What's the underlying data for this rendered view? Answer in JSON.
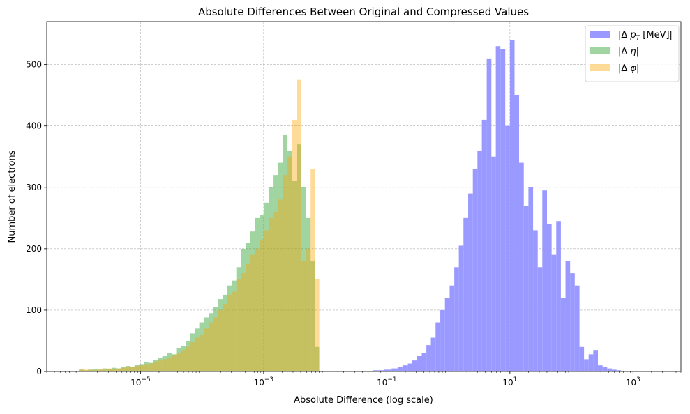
{
  "chart_data": {
    "type": "histogram",
    "title": "Absolute Differences Between Original and Compressed Values",
    "xlabel": "Absolute Difference (log scale)",
    "ylabel": "Number of electrons",
    "xscale": "log",
    "xlim": [
      3e-07,
      6000
    ],
    "ylim": [
      0,
      570
    ],
    "grid": true,
    "legend_position": "top-right",
    "x_ticks": [
      {
        "base": "10",
        "exp": "−5",
        "value": 1e-05
      },
      {
        "base": "10",
        "exp": "−3",
        "value": 0.001
      },
      {
        "base": "10",
        "exp": "−1",
        "value": 0.1
      },
      {
        "base": "10",
        "exp": "1",
        "value": 10
      },
      {
        "base": "10",
        "exp": "3",
        "value": 1000
      }
    ],
    "y_ticks": [
      0,
      100,
      200,
      300,
      400,
      500
    ],
    "series": [
      {
        "name": "|Δ p_T [MeV]|",
        "label_main": "|Δ ",
        "label_var": "p",
        "label_sub": "T",
        "label_tail": " [MeV]|",
        "color": "#9999ff",
        "opacity": 1.0,
        "bins": [
          [
            0.04,
            0.06,
            1
          ],
          [
            0.06,
            0.09,
            2
          ],
          [
            0.09,
            0.12,
            3
          ],
          [
            0.12,
            0.15,
            5
          ],
          [
            0.15,
            0.18,
            7
          ],
          [
            0.18,
            0.22,
            10
          ],
          [
            0.22,
            0.26,
            13
          ],
          [
            0.26,
            0.31,
            18
          ],
          [
            0.31,
            0.37,
            25
          ],
          [
            0.37,
            0.44,
            30
          ],
          [
            0.44,
            0.52,
            43
          ],
          [
            0.52,
            0.62,
            55
          ],
          [
            0.62,
            0.74,
            80
          ],
          [
            0.74,
            0.88,
            100
          ],
          [
            0.88,
            1.05,
            120
          ],
          [
            1.05,
            1.25,
            140
          ],
          [
            1.25,
            1.48,
            170
          ],
          [
            1.48,
            1.76,
            205
          ],
          [
            1.76,
            2.1,
            250
          ],
          [
            2.1,
            2.5,
            290
          ],
          [
            2.5,
            2.97,
            330
          ],
          [
            2.97,
            3.5,
            360
          ],
          [
            3.5,
            4.2,
            410
          ],
          [
            4.2,
            5.0,
            510
          ],
          [
            5.0,
            5.9,
            350
          ],
          [
            5.9,
            7.0,
            530
          ],
          [
            7.0,
            8.4,
            525
          ],
          [
            8.4,
            10.0,
            400
          ],
          [
            10.0,
            11.9,
            540
          ],
          [
            11.9,
            14.1,
            450
          ],
          [
            14.1,
            16.8,
            340
          ],
          [
            16.8,
            20.0,
            270
          ],
          [
            20.0,
            23.8,
            300
          ],
          [
            23.8,
            28.3,
            230
          ],
          [
            28.3,
            33.6,
            170
          ],
          [
            33.6,
            40.0,
            295
          ],
          [
            40.0,
            47.6,
            240
          ],
          [
            47.6,
            56.6,
            190
          ],
          [
            56.6,
            67.3,
            245
          ],
          [
            67.3,
            80.0,
            120
          ],
          [
            80.0,
            95.1,
            180
          ],
          [
            95.1,
            113,
            160
          ],
          [
            113,
            135,
            140
          ],
          [
            135,
            160,
            40
          ],
          [
            160,
            190,
            20
          ],
          [
            190,
            226,
            28
          ],
          [
            226,
            269,
            35
          ],
          [
            269,
            320,
            10
          ],
          [
            320,
            380,
            7
          ],
          [
            380,
            452,
            5
          ],
          [
            452,
            538,
            3
          ],
          [
            538,
            640,
            2
          ],
          [
            640,
            760,
            1
          ]
        ]
      },
      {
        "name": "|Δ η|",
        "label_main": "|Δ ",
        "label_var": "η",
        "label_sub": "",
        "label_tail": "|",
        "color": "#2ca02c",
        "opacity": 0.45,
        "bins": [
          [
            1e-06,
            1.2e-06,
            3
          ],
          [
            1.2e-06,
            1.4e-06,
            2
          ],
          [
            1.4e-06,
            1.7e-06,
            3
          ],
          [
            1.7e-06,
            2e-06,
            4
          ],
          [
            2e-06,
            2.4e-06,
            3
          ],
          [
            2.4e-06,
            2.8e-06,
            5
          ],
          [
            2.8e-06,
            3.4e-06,
            4
          ],
          [
            3.4e-06,
            4e-06,
            6
          ],
          [
            4e-06,
            4.8e-06,
            5
          ],
          [
            4.8e-06,
            5.7e-06,
            7
          ],
          [
            5.7e-06,
            6.8e-06,
            9
          ],
          [
            6.8e-06,
            8e-06,
            8
          ],
          [
            8e-06,
            9.5e-06,
            11
          ],
          [
            9.5e-06,
            1.13e-05,
            12
          ],
          [
            1.13e-05,
            1.35e-05,
            15
          ],
          [
            1.35e-05,
            1.6e-05,
            14
          ],
          [
            1.6e-05,
            1.9e-05,
            19
          ],
          [
            1.9e-05,
            2.26e-05,
            22
          ],
          [
            2.26e-05,
            2.69e-05,
            25
          ],
          [
            2.69e-05,
            3.2e-05,
            30
          ],
          [
            3.2e-05,
            3.8e-05,
            28
          ],
          [
            3.8e-05,
            4.5e-05,
            38
          ],
          [
            4.5e-05,
            5.4e-05,
            42
          ],
          [
            5.4e-05,
            6.4e-05,
            50
          ],
          [
            6.4e-05,
            7.6e-05,
            62
          ],
          [
            7.6e-05,
            9e-05,
            70
          ],
          [
            9e-05,
            0.000107,
            80
          ],
          [
            0.000107,
            0.000128,
            88
          ],
          [
            0.000128,
            0.000152,
            95
          ],
          [
            0.000152,
            0.00018,
            105
          ],
          [
            0.00018,
            0.000215,
            118
          ],
          [
            0.000215,
            0.000256,
            125
          ],
          [
            0.000256,
            0.000304,
            140
          ],
          [
            0.000304,
            0.00036,
            148
          ],
          [
            0.00036,
            0.00043,
            170
          ],
          [
            0.00043,
            0.00051,
            200
          ],
          [
            0.00051,
            0.00061,
            210
          ],
          [
            0.00061,
            0.00072,
            228
          ],
          [
            0.00072,
            0.00086,
            250
          ],
          [
            0.00086,
            0.00102,
            255
          ],
          [
            0.00102,
            0.00122,
            275
          ],
          [
            0.00122,
            0.00145,
            300
          ],
          [
            0.00145,
            0.00172,
            320
          ],
          [
            0.00172,
            0.00205,
            340
          ],
          [
            0.00205,
            0.00244,
            385
          ],
          [
            0.00244,
            0.0029,
            360
          ],
          [
            0.0029,
            0.00345,
            310
          ],
          [
            0.00345,
            0.0041,
            370
          ],
          [
            0.0041,
            0.0049,
            300
          ],
          [
            0.0049,
            0.0058,
            250
          ],
          [
            0.0058,
            0.0069,
            180
          ],
          [
            0.0069,
            0.008,
            40
          ]
        ]
      },
      {
        "name": "|Δ φ|",
        "label_main": "|Δ ",
        "label_var": "φ",
        "label_sub": "",
        "label_tail": "|",
        "color": "#ffa500",
        "opacity": 0.4,
        "bins": [
          [
            1e-06,
            1.2e-06,
            4
          ],
          [
            1.2e-06,
            1.4e-06,
            3
          ],
          [
            1.4e-06,
            1.7e-06,
            3
          ],
          [
            1.7e-06,
            2e-06,
            2
          ],
          [
            2e-06,
            2.4e-06,
            4
          ],
          [
            2.4e-06,
            2.8e-06,
            3
          ],
          [
            2.8e-06,
            3.4e-06,
            5
          ],
          [
            3.4e-06,
            4e-06,
            4
          ],
          [
            4e-06,
            4.8e-06,
            5
          ],
          [
            4.8e-06,
            5.7e-06,
            6
          ],
          [
            5.7e-06,
            6.8e-06,
            7
          ],
          [
            6.8e-06,
            8e-06,
            8
          ],
          [
            8e-06,
            9.5e-06,
            9
          ],
          [
            9.5e-06,
            1.13e-05,
            10
          ],
          [
            1.13e-05,
            1.35e-05,
            12
          ],
          [
            1.35e-05,
            1.6e-05,
            13
          ],
          [
            1.6e-05,
            1.9e-05,
            15
          ],
          [
            1.9e-05,
            2.26e-05,
            18
          ],
          [
            2.26e-05,
            2.69e-05,
            20
          ],
          [
            2.69e-05,
            3.2e-05,
            23
          ],
          [
            3.2e-05,
            3.8e-05,
            26
          ],
          [
            3.8e-05,
            4.5e-05,
            30
          ],
          [
            4.5e-05,
            5.4e-05,
            35
          ],
          [
            5.4e-05,
            6.4e-05,
            40
          ],
          [
            6.4e-05,
            7.6e-05,
            48
          ],
          [
            7.6e-05,
            9e-05,
            55
          ],
          [
            9e-05,
            0.000107,
            60
          ],
          [
            0.000107,
            0.000128,
            70
          ],
          [
            0.000128,
            0.000152,
            80
          ],
          [
            0.000152,
            0.00018,
            88
          ],
          [
            0.00018,
            0.000215,
            100
          ],
          [
            0.000215,
            0.000256,
            110
          ],
          [
            0.000256,
            0.000304,
            125
          ],
          [
            0.000304,
            0.00036,
            130
          ],
          [
            0.00036,
            0.00043,
            150
          ],
          [
            0.00043,
            0.00051,
            160
          ],
          [
            0.00051,
            0.00061,
            175
          ],
          [
            0.00061,
            0.00072,
            190
          ],
          [
            0.00072,
            0.00086,
            200
          ],
          [
            0.00086,
            0.00102,
            215
          ],
          [
            0.00102,
            0.00122,
            230
          ],
          [
            0.00122,
            0.00145,
            250
          ],
          [
            0.00145,
            0.00172,
            260
          ],
          [
            0.00172,
            0.00205,
            280
          ],
          [
            0.00205,
            0.00244,
            320
          ],
          [
            0.00244,
            0.0029,
            350
          ],
          [
            0.0029,
            0.00345,
            410
          ],
          [
            0.00345,
            0.0041,
            475
          ],
          [
            0.0041,
            0.0049,
            180
          ],
          [
            0.0049,
            0.0058,
            200
          ],
          [
            0.0058,
            0.0069,
            330
          ],
          [
            0.0069,
            0.008,
            150
          ]
        ]
      }
    ]
  }
}
